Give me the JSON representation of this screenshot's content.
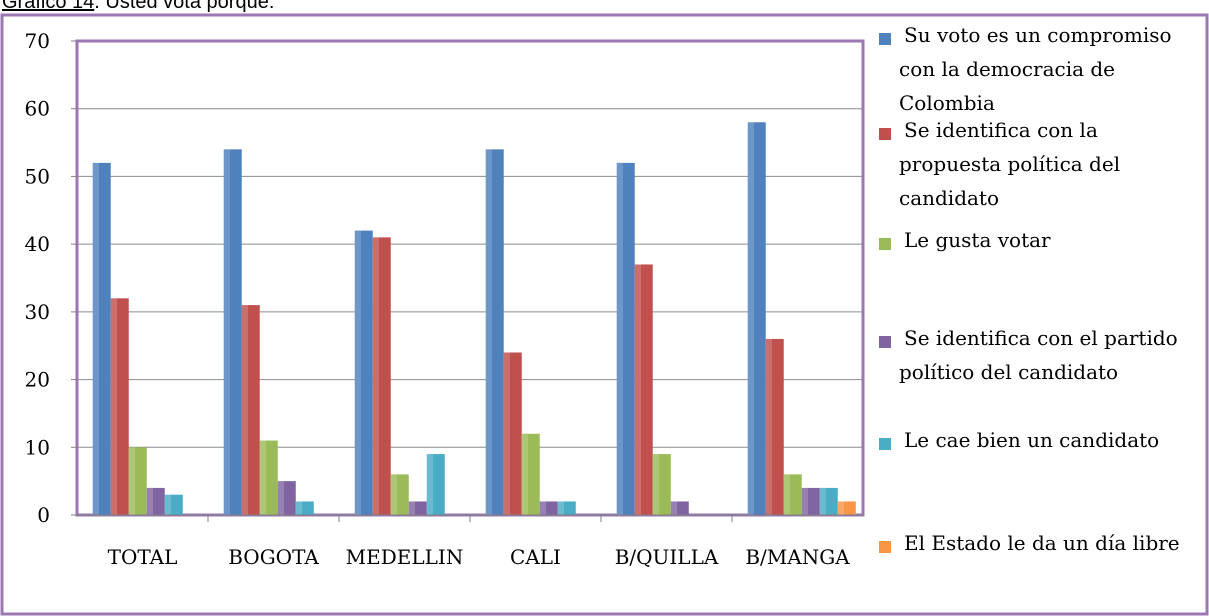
{
  "caption": {
    "label": "Gráfico 14",
    "text": ". Usted vota porque:"
  },
  "chart_data": {
    "type": "bar",
    "categories": [
      "TOTAL",
      "BOGOTA",
      "MEDELLIN",
      "CALI",
      "B/QUILLA",
      "B/MANGA"
    ],
    "ylim": [
      0,
      70
    ],
    "yticks": [
      0,
      10,
      20,
      30,
      40,
      50,
      60,
      70
    ],
    "grid": true,
    "legend_position": "right",
    "series": [
      {
        "name": "Su voto es un compromiso con la democracia de Colombia",
        "color": "#4F81BD",
        "legend_lines": [
          "Su voto es un compromiso",
          "con la democracia de",
          "Colombia"
        ],
        "values": [
          52,
          54,
          42,
          54,
          52,
          58
        ]
      },
      {
        "name": "Se identifica con la propuesta política del candidato",
        "color": "#C0504D",
        "legend_lines": [
          "Se identifica con la",
          "propuesta política del",
          "candidato"
        ],
        "values": [
          32,
          31,
          41,
          24,
          37,
          26
        ]
      },
      {
        "name": "Le gusta votar",
        "color": "#9BBB59",
        "legend_lines": [
          "Le gusta votar"
        ],
        "values": [
          10,
          11,
          6,
          12,
          9,
          6
        ]
      },
      {
        "name": "Se identifica con el partido político del candidato",
        "color": "#8064A2",
        "legend_lines": [
          "Se identifica con el partido",
          "político del candidato"
        ],
        "values": [
          4,
          5,
          2,
          2,
          2,
          4
        ]
      },
      {
        "name": "Le cae bien un candidato",
        "color": "#4BACC6",
        "legend_lines": [
          "Le cae bien un candidato"
        ],
        "values": [
          3,
          2,
          9,
          2,
          0,
          4
        ]
      },
      {
        "name": "El Estado le da un día libre",
        "color": "#F79646",
        "legend_lines": [
          "El Estado le da un día libre"
        ],
        "values": [
          0,
          0,
          0,
          0,
          0,
          2
        ]
      }
    ]
  }
}
